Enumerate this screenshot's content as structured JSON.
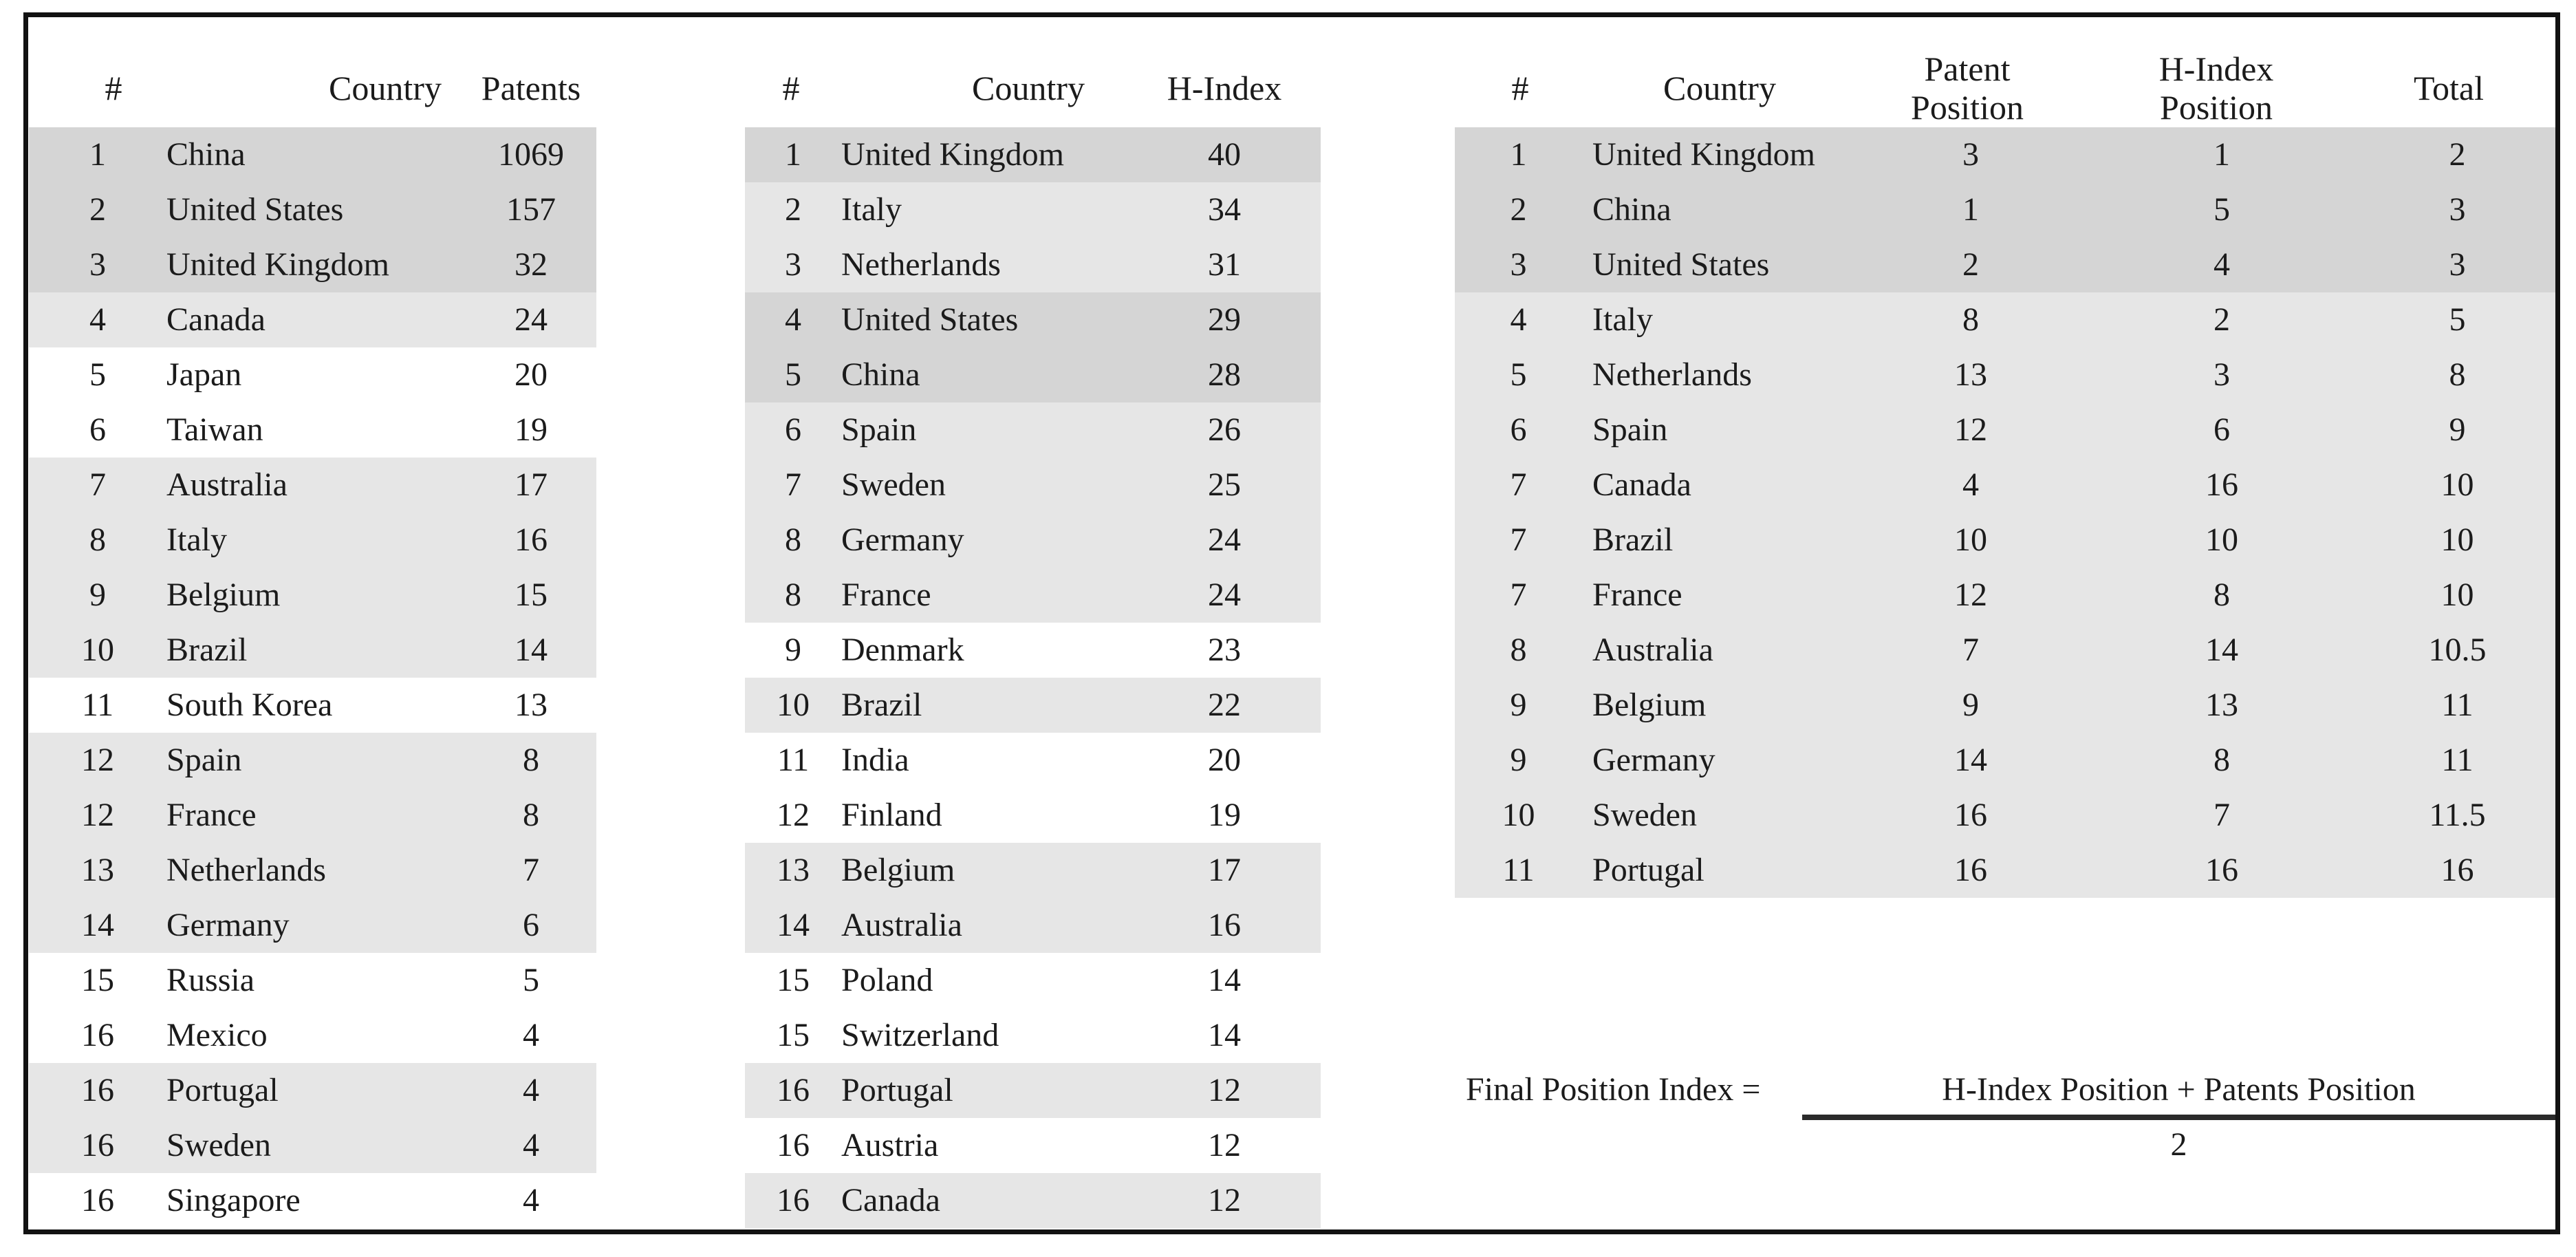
{
  "page": {
    "background": "#ffffff",
    "frame_color": "#121212",
    "text_color": "#1b1b1b"
  },
  "colors": {
    "shade_dark": "#d5d5d5",
    "shade_light": "#e6e6e6",
    "shade_white": "#ffffff",
    "fraction_bar": "#2a2a2a"
  },
  "tables": [
    {
      "name": "patents-ranking",
      "columns": [
        "#",
        "Country",
        "Patents"
      ],
      "rows": [
        {
          "rank": "1",
          "country": "China",
          "patents": "1069",
          "shade": "dark"
        },
        {
          "rank": "2",
          "country": "United States",
          "patents": "157",
          "shade": "dark"
        },
        {
          "rank": "3",
          "country": "United Kingdom",
          "patents": "32",
          "shade": "dark"
        },
        {
          "rank": "4",
          "country": "Canada",
          "patents": "24",
          "shade": "light"
        },
        {
          "rank": "5",
          "country": "Japan",
          "patents": "20",
          "shade": "white"
        },
        {
          "rank": "6",
          "country": "Taiwan",
          "patents": "19",
          "shade": "white"
        },
        {
          "rank": "7",
          "country": "Australia",
          "patents": "17",
          "shade": "light"
        },
        {
          "rank": "8",
          "country": "Italy",
          "patents": "16",
          "shade": "light"
        },
        {
          "rank": "9",
          "country": "Belgium",
          "patents": "15",
          "shade": "light"
        },
        {
          "rank": "10",
          "country": "Brazil",
          "patents": "14",
          "shade": "light"
        },
        {
          "rank": "11",
          "country": "South Korea",
          "patents": "13",
          "shade": "white"
        },
        {
          "rank": "12",
          "country": "Spain",
          "patents": "8",
          "shade": "light"
        },
        {
          "rank": "12",
          "country": "France",
          "patents": "8",
          "shade": "light"
        },
        {
          "rank": "13",
          "country": "Netherlands",
          "patents": "7",
          "shade": "light"
        },
        {
          "rank": "14",
          "country": "Germany",
          "patents": "6",
          "shade": "light"
        },
        {
          "rank": "15",
          "country": "Russia",
          "patents": "5",
          "shade": "white"
        },
        {
          "rank": "16",
          "country": "Mexico",
          "patents": "4",
          "shade": "white"
        },
        {
          "rank": "16",
          "country": "Portugal",
          "patents": "4",
          "shade": "light"
        },
        {
          "rank": "16",
          "country": "Sweden",
          "patents": "4",
          "shade": "light"
        },
        {
          "rank": "16",
          "country": "Singapore",
          "patents": "4",
          "shade": "white"
        }
      ]
    },
    {
      "name": "h-index-ranking",
      "columns": [
        "#",
        "Country",
        "H-Index"
      ],
      "rows": [
        {
          "rank": "1",
          "country": "United Kingdom",
          "hindex": "40",
          "shade": "dark"
        },
        {
          "rank": "2",
          "country": "Italy",
          "hindex": "34",
          "shade": "light"
        },
        {
          "rank": "3",
          "country": "Netherlands",
          "hindex": "31",
          "shade": "light"
        },
        {
          "rank": "4",
          "country": "United States",
          "hindex": "29",
          "shade": "dark"
        },
        {
          "rank": "5",
          "country": "China",
          "hindex": "28",
          "shade": "dark"
        },
        {
          "rank": "6",
          "country": "Spain",
          "hindex": "26",
          "shade": "light"
        },
        {
          "rank": "7",
          "country": "Sweden",
          "hindex": "25",
          "shade": "light"
        },
        {
          "rank": "8",
          "country": "Germany",
          "hindex": "24",
          "shade": "light"
        },
        {
          "rank": "8",
          "country": "France",
          "hindex": "24",
          "shade": "light"
        },
        {
          "rank": "9",
          "country": "Denmark",
          "hindex": "23",
          "shade": "white"
        },
        {
          "rank": "10",
          "country": "Brazil",
          "hindex": "22",
          "shade": "light"
        },
        {
          "rank": "11",
          "country": "India",
          "hindex": "20",
          "shade": "white"
        },
        {
          "rank": "12",
          "country": "Finland",
          "hindex": "19",
          "shade": "white"
        },
        {
          "rank": "13",
          "country": "Belgium",
          "hindex": "17",
          "shade": "light"
        },
        {
          "rank": "14",
          "country": "Australia",
          "hindex": "16",
          "shade": "light"
        },
        {
          "rank": "15",
          "country": "Poland",
          "hindex": "14",
          "shade": "white"
        },
        {
          "rank": "15",
          "country": "Switzerland",
          "hindex": "14",
          "shade": "white"
        },
        {
          "rank": "16",
          "country": "Portugal",
          "hindex": "12",
          "shade": "light"
        },
        {
          "rank": "16",
          "country": "Austria",
          "hindex": "12",
          "shade": "white"
        },
        {
          "rank": "16",
          "country": "Canada",
          "hindex": "12",
          "shade": "light"
        }
      ]
    },
    {
      "name": "final-position-ranking",
      "columns": [
        "#",
        "Country",
        "Patent Position",
        "H-Index Position",
        "Total"
      ],
      "rows": [
        {
          "rank": "1",
          "country": "United Kingdom",
          "patent_position": "3",
          "hindex_position": "1",
          "total": "2",
          "shade": "dark"
        },
        {
          "rank": "2",
          "country": "China",
          "patent_position": "1",
          "hindex_position": "5",
          "total": "3",
          "shade": "dark"
        },
        {
          "rank": "3",
          "country": "United States",
          "patent_position": "2",
          "hindex_position": "4",
          "total": "3",
          "shade": "dark"
        },
        {
          "rank": "4",
          "country": "Italy",
          "patent_position": "8",
          "hindex_position": "2",
          "total": "5",
          "shade": "light"
        },
        {
          "rank": "5",
          "country": "Netherlands",
          "patent_position": "13",
          "hindex_position": "3",
          "total": "8",
          "shade": "light"
        },
        {
          "rank": "6",
          "country": "Spain",
          "patent_position": "12",
          "hindex_position": "6",
          "total": "9",
          "shade": "light"
        },
        {
          "rank": "7",
          "country": "Canada",
          "patent_position": "4",
          "hindex_position": "16",
          "total": "10",
          "shade": "light"
        },
        {
          "rank": "7",
          "country": "Brazil",
          "patent_position": "10",
          "hindex_position": "10",
          "total": "10",
          "shade": "light"
        },
        {
          "rank": "7",
          "country": "France",
          "patent_position": "12",
          "hindex_position": "8",
          "total": "10",
          "shade": "light"
        },
        {
          "rank": "8",
          "country": "Australia",
          "patent_position": "7",
          "hindex_position": "14",
          "total": "10.5",
          "shade": "light"
        },
        {
          "rank": "9",
          "country": "Belgium",
          "patent_position": "9",
          "hindex_position": "13",
          "total": "11",
          "shade": "light"
        },
        {
          "rank": "9",
          "country": "Germany",
          "patent_position": "14",
          "hindex_position": "8",
          "total": "11",
          "shade": "light"
        },
        {
          "rank": "10",
          "country": "Sweden",
          "patent_position": "16",
          "hindex_position": "7",
          "total": "11.5",
          "shade": "light"
        },
        {
          "rank": "11",
          "country": "Portugal",
          "patent_position": "16",
          "hindex_position": "16",
          "total": "16",
          "shade": "light"
        }
      ]
    }
  ],
  "formula": {
    "label": "Final Position Index =",
    "numerator": "H-Index Position + Patents Position",
    "denominator": "2"
  }
}
